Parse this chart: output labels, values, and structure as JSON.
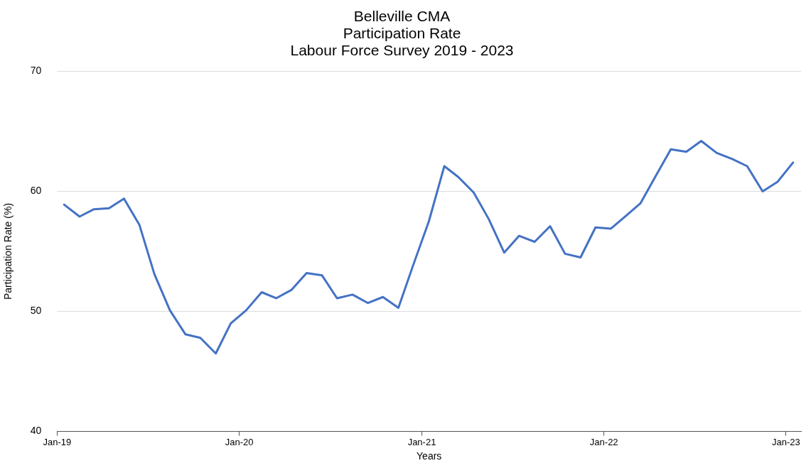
{
  "chart_data": {
    "type": "line",
    "title": "Belleville CMA\nParticipation Rate\nLabour Force Survey 2019 - 2023",
    "xlabel": "Years",
    "ylabel": "Participation Rate (%)",
    "x": [
      "2019-01-15",
      "2019-02-15",
      "2019-03-15",
      "2019-04-15",
      "2019-05-15",
      "2019-06-15",
      "2019-07-15",
      "2019-08-15",
      "2019-09-15",
      "2019-10-15",
      "2019-11-15",
      "2019-12-15",
      "2020-01-15",
      "2020-02-15",
      "2020-03-15",
      "2020-04-15",
      "2020-05-15",
      "2020-06-15",
      "2020-07-15",
      "2020-08-15",
      "2020-09-15",
      "2020-10-15",
      "2020-11-15",
      "2020-12-15",
      "2021-01-15",
      "2021-02-15",
      "2021-03-15",
      "2021-04-15",
      "2021-05-15",
      "2021-06-15",
      "2021-07-15",
      "2021-08-15",
      "2021-09-15",
      "2021-10-15",
      "2021-11-15",
      "2021-12-15",
      "2022-01-15",
      "2022-02-15",
      "2022-03-15",
      "2022-04-15",
      "2022-05-15",
      "2022-06-15",
      "2022-07-15",
      "2022-08-15",
      "2022-09-15",
      "2022-10-15",
      "2022-11-15",
      "2022-12-15",
      "2023-01-15"
    ],
    "series": [
      {
        "color": "#4472c4",
        "values": [
          58.9,
          57.9,
          58.5,
          58.6,
          59.4,
          57.2,
          53.1,
          50.1,
          48.1,
          47.8,
          46.5,
          49.0,
          50.1,
          51.6,
          51.1,
          51.8,
          53.2,
          53.0,
          51.1,
          51.4,
          50.7,
          51.2,
          50.3,
          53.9,
          57.5,
          62.1,
          61.2,
          59.9,
          57.7,
          54.9,
          56.3,
          55.8,
          57.1,
          54.8,
          54.5,
          57.0,
          56.9,
          58.0,
          59.0,
          61.3,
          63.5,
          63.3,
          64.2,
          63.2,
          62.7,
          62.1,
          60.0,
          60.8,
          62.4
        ]
      }
    ],
    "xlim": [
      "2019-01-01",
      "2023-01-31"
    ],
    "xticks": [
      {
        "value": "2019-01-01",
        "label": "Jan-19"
      },
      {
        "value": "2020-01-01",
        "label": "Jan-20"
      },
      {
        "value": "2021-01-01",
        "label": "Jan-21"
      },
      {
        "value": "2022-01-01",
        "label": "Jan-22"
      },
      {
        "value": "2023-01-01",
        "label": "Jan-23"
      }
    ],
    "ylim": [
      40,
      70
    ],
    "yticks": [
      40,
      50,
      60,
      70
    ],
    "grid": "y",
    "legend": false,
    "marker": "none",
    "line_style": "solid"
  }
}
